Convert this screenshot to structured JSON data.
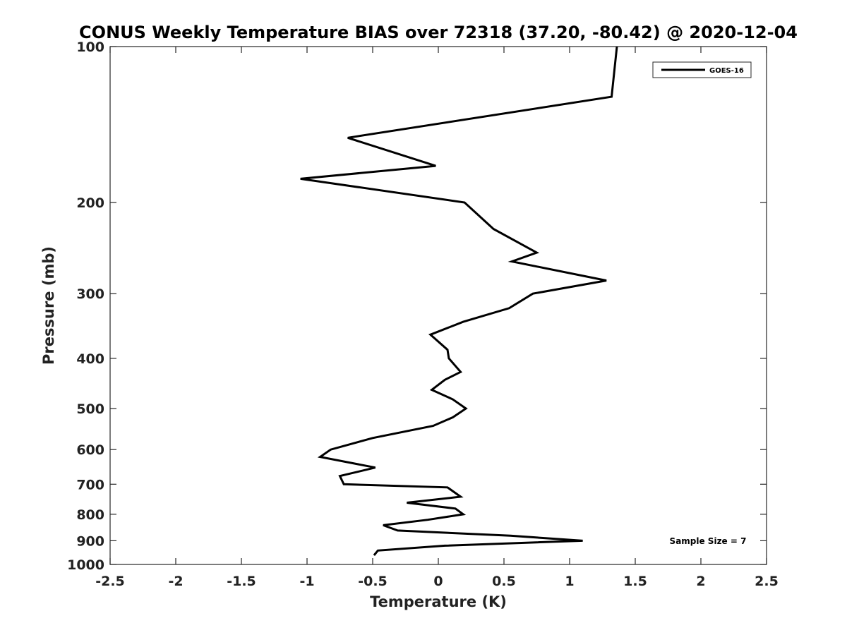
{
  "chart_data": {
    "type": "line",
    "title": "CONUS Weekly Temperature BIAS over 72318 (37.20, -80.42) @ 2020-12-04",
    "xlabel": "Temperature (K)",
    "ylabel": "Pressure (mb)",
    "xlim": [
      -2.5,
      2.5
    ],
    "ylim": [
      100,
      1000
    ],
    "y_scale": "log",
    "y_reversed": true,
    "x_ticks": [
      -2.5,
      -2,
      -1.5,
      -1,
      -0.5,
      0,
      0.5,
      1,
      1.5,
      2,
      2.5
    ],
    "x_tick_labels": [
      "-2.5",
      "-2",
      "-1.5",
      "-1",
      "-0.5",
      "0",
      "0.5",
      "1",
      "1.5",
      "2",
      "2.5"
    ],
    "y_ticks": [
      100,
      200,
      300,
      400,
      500,
      600,
      700,
      800,
      900,
      1000
    ],
    "y_tick_labels": [
      "100",
      "200",
      "300",
      "400",
      "500",
      "600",
      "700",
      "800",
      "900",
      "1000"
    ],
    "grid": false,
    "legend_position": "top-right",
    "series": [
      {
        "name": "GOES-16",
        "color": "#000000",
        "x": [
          1.36,
          1.32,
          -0.69,
          -0.02,
          -1.05,
          0.2,
          0.42,
          0.75,
          0.56,
          1.28,
          0.72,
          0.54,
          0.19,
          -0.06,
          0.07,
          0.08,
          0.17,
          0.05,
          -0.05,
          0.11,
          0.21,
          0.11,
          -0.04,
          -0.5,
          -0.82,
          -0.9,
          -0.48,
          -0.75,
          -0.72,
          0.07,
          0.17,
          -0.24,
          0.13,
          0.19,
          -0.08,
          -0.42,
          -0.31,
          0.55,
          1.1,
          0.05,
          -0.46,
          -0.49
        ],
        "y": [
          100,
          125,
          150,
          170,
          180,
          200,
          225,
          250,
          260,
          283,
          300,
          320,
          340,
          360,
          385,
          400,
          425,
          440,
          460,
          480,
          500,
          520,
          540,
          570,
          600,
          620,
          650,
          675,
          700,
          710,
          740,
          760,
          780,
          800,
          820,
          840,
          860,
          880,
          900,
          920,
          940,
          960
        ]
      }
    ],
    "annotations": [
      "Sample Size = 7"
    ]
  }
}
